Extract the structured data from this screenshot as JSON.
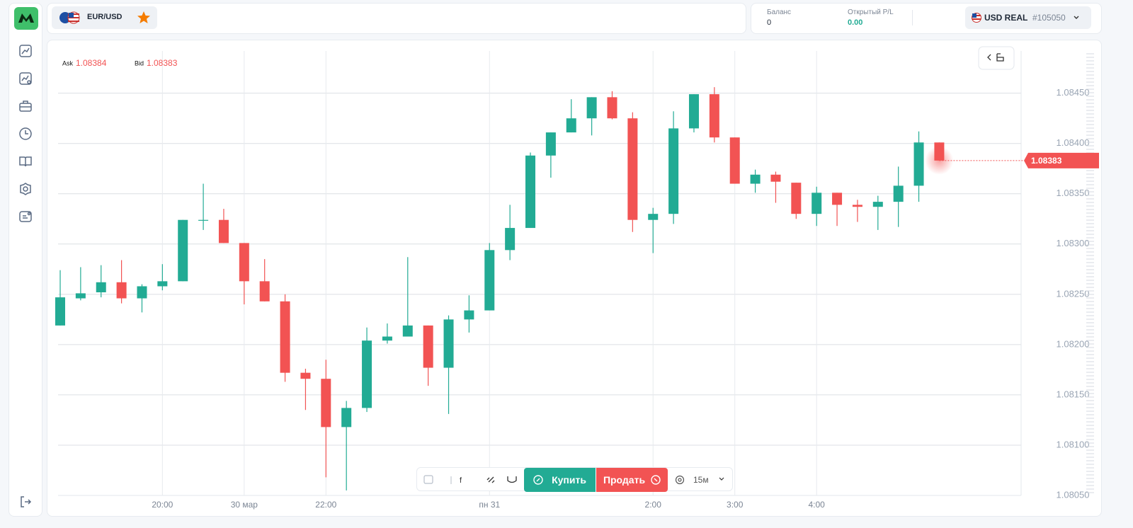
{
  "header": {
    "symbol": "EUR/USD",
    "balance_label": "Баланс",
    "balance_value": "0",
    "pl_label": "Открытый P/L",
    "pl_value": "0.00",
    "account_currency": "USD REAL",
    "account_id": "#105050"
  },
  "quote": {
    "ask_label": "Ask",
    "ask_value": "1.08384",
    "bid_label": "Bid",
    "bid_value": "1.08383",
    "last_price": "1.08383"
  },
  "toolbar": {
    "buy": "Купить",
    "sell": "Продать",
    "timeframe": "15м"
  },
  "chart_data": {
    "type": "candlestick",
    "categories": [
      null,
      null,
      null,
      null,
      null,
      "20:00",
      null,
      null,
      null,
      "30 мар",
      null,
      null,
      null,
      "22:00",
      null,
      null,
      null,
      null,
      null,
      null,
      null,
      "пн 31",
      null,
      null,
      null,
      null,
      null,
      null,
      null,
      "2:00",
      null,
      null,
      null,
      "3:00",
      null,
      null,
      null,
      "4:00",
      null,
      null,
      null,
      null,
      null,
      null
    ],
    "up_color": "#22ab94",
    "down_color": "#f25353",
    "open": [
      1.08219,
      1.08246,
      1.08252,
      1.08262,
      1.08246,
      1.08258,
      1.08263,
      1.08324,
      1.08324,
      1.08301,
      1.08263,
      1.08243,
      1.08172,
      1.08166,
      1.08118,
      1.08137,
      1.08204,
      1.08208,
      1.08219,
      1.08177,
      1.08225,
      1.08234,
      1.08294,
      1.08316,
      1.08388,
      1.08411,
      1.08425,
      1.08446,
      1.08425,
      1.08324,
      1.0833,
      1.08415,
      1.08449,
      1.08406,
      1.0836,
      1.08369,
      1.08361,
      1.0833,
      1.08351,
      1.08339,
      1.08337,
      1.08342,
      1.08358,
      1.08401
    ],
    "high": [
      1.08274,
      1.08277,
      1.08279,
      1.08284,
      1.0826,
      1.0828,
      1.08324,
      1.0836,
      1.08335,
      1.08301,
      1.08285,
      1.0825,
      1.08176,
      1.08185,
      1.08144,
      1.08217,
      1.08221,
      1.08287,
      1.08219,
      1.08229,
      1.08249,
      1.08301,
      1.08339,
      1.08391,
      1.08411,
      1.08444,
      1.08446,
      1.08452,
      1.08431,
      1.08336,
      1.08432,
      1.08449,
      1.08456,
      1.08406,
      1.08374,
      1.08372,
      1.08361,
      1.08357,
      1.08351,
      1.08344,
      1.08348,
      1.08377,
      1.08412,
      1.08401
    ],
    "low": [
      1.08219,
      1.08244,
      1.08247,
      1.08241,
      1.08232,
      1.08254,
      1.08263,
      1.08314,
      1.08301,
      1.0824,
      1.08243,
      1.08163,
      1.08135,
      1.08068,
      1.08055,
      1.08133,
      1.08201,
      1.08208,
      1.08159,
      1.08131,
      1.08212,
      1.08234,
      1.08284,
      1.08316,
      1.08366,
      1.08411,
      1.08408,
      1.08424,
      1.08312,
      1.08291,
      1.0832,
      1.08411,
      1.08401,
      1.0836,
      1.08351,
      1.08341,
      1.08325,
      1.08318,
      1.08318,
      1.08322,
      1.08314,
      1.08317,
      1.08342,
      1.08383
    ],
    "close": [
      1.08247,
      1.08251,
      1.08262,
      1.08246,
      1.08258,
      1.08263,
      1.08324,
      1.08324,
      1.08301,
      1.08263,
      1.08243,
      1.08172,
      1.08166,
      1.08118,
      1.08137,
      1.08204,
      1.08208,
      1.08219,
      1.08177,
      1.08225,
      1.08234,
      1.08294,
      1.08316,
      1.08388,
      1.08411,
      1.08425,
      1.08446,
      1.08425,
      1.08324,
      1.0833,
      1.08415,
      1.08449,
      1.08406,
      1.0836,
      1.08369,
      1.08362,
      1.0833,
      1.08351,
      1.08339,
      1.08337,
      1.08342,
      1.08358,
      1.08401,
      1.08383
    ],
    "ylim": [
      1.0805,
      1.08492
    ],
    "yticks": [
      {
        "value": 1.0805,
        "label": "1.08050"
      },
      {
        "value": 1.081,
        "label": "1.08100"
      },
      {
        "value": 1.0815,
        "label": "1.08150"
      },
      {
        "value": 1.082,
        "label": "1.08200"
      },
      {
        "value": 1.0825,
        "label": "1.08250"
      },
      {
        "value": 1.083,
        "label": "1.08300"
      },
      {
        "value": 1.0835,
        "label": "1.08350"
      },
      {
        "value": 1.084,
        "label": "1.08400"
      },
      {
        "value": 1.0845,
        "label": "1.08450"
      }
    ],
    "grid": true
  }
}
